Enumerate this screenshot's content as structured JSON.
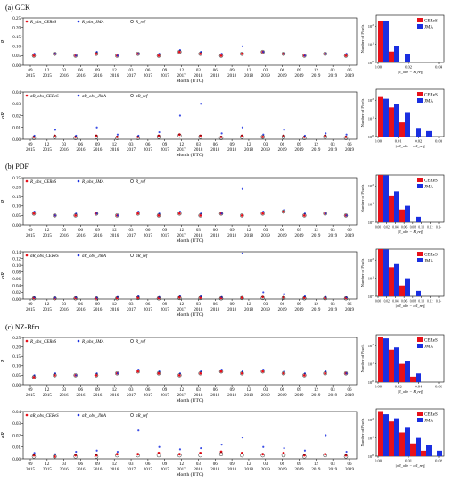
{
  "colors": {
    "ceres": "#e8101a",
    "jma": "#1a2fe0",
    "ref": "#000000"
  },
  "x_ticks": {
    "months": [
      "09",
      "12",
      "03",
      "06",
      "09",
      "12",
      "03",
      "06",
      "09",
      "12",
      "03",
      "06",
      "09",
      "12",
      "03",
      "06",
      "09",
      "12",
      "03",
      "06"
    ],
    "years": [
      "2015",
      "2015",
      "2016",
      "2016",
      "2016",
      "2016",
      "2017",
      "2017",
      "2017",
      "2017",
      "2018",
      "2018",
      "2018",
      "2018",
      "2019",
      "2019",
      "2019",
      "2019",
      "2019",
      "2019"
    ],
    "xlabel": "Month (UTC)"
  },
  "legend_top": [
    "R_obs_CEReS",
    "R_obs_JMA",
    "R_ref"
  ],
  "legend_bottom": [
    "σR_obs_CEReS",
    "σR_obs_JMA",
    "σR_ref"
  ],
  "hist_legend": [
    "CEReS",
    "JMA"
  ],
  "hist_ylabel": "Number of Pixels",
  "chart_data": [
    {
      "section": "(a) GCK",
      "type": "scatter",
      "ylabel": "R",
      "yticks": [
        "0.00",
        "0.05",
        "0.10",
        "0.15",
        "0.20",
        "0.25"
      ],
      "ylim": [
        0,
        0.25
      ],
      "series": [
        {
          "name": "R_obs_CEReS",
          "values": [
            0.05,
            0.06,
            0.05,
            0.06,
            0.05,
            0.06,
            0.05,
            0.07,
            0.06,
            0.05,
            0.06,
            0.07,
            0.06,
            0.05,
            0.06,
            0.05
          ]
        },
        {
          "name": "R_obs_JMA",
          "values": [
            0.06,
            0.06,
            0.05,
            0.07,
            0.05,
            0.06,
            0.06,
            0.08,
            0.07,
            0.06,
            0.1,
            0.07,
            0.06,
            0.05,
            0.06,
            0.06
          ]
        },
        {
          "name": "R_ref",
          "values": [
            0.05,
            0.06,
            0.05,
            0.06,
            0.05,
            0.06,
            0.05,
            0.07,
            0.06,
            0.05,
            0.06,
            0.07,
            0.06,
            0.05,
            0.06,
            0.05
          ]
        }
      ],
      "hist": {
        "xlabel": "|R_obs − R_ref|",
        "xticks": [
          "0.00",
          "0.02",
          "0.04"
        ],
        "yticks": [
          "10^0",
          "10^1",
          "10^2"
        ],
        "ceres": [
          190,
          4,
          1,
          0,
          0,
          0
        ],
        "jma": [
          190,
          8,
          3,
          1,
          1,
          0
        ]
      }
    },
    {
      "section": "(a) GCK",
      "type": "scatter",
      "ylabel": "σR",
      "yticks": [
        "0.00",
        "0.01",
        "0.02",
        "0.03",
        "0.04"
      ],
      "ylim": [
        0,
        0.04
      ],
      "series": [
        {
          "name": "σR_obs_CEReS",
          "values": [
            0.002,
            0.003,
            0.002,
            0.003,
            0.002,
            0.002,
            0.003,
            0.004,
            0.003,
            0.002,
            0.003,
            0.002,
            0.003,
            0.002,
            0.003,
            0.002
          ]
        },
        {
          "name": "σR_obs_JMA",
          "values": [
            0.003,
            0.008,
            0.003,
            0.01,
            0.004,
            0.003,
            0.006,
            0.02,
            0.03,
            0.005,
            0.01,
            0.004,
            0.008,
            0.003,
            0.005,
            0.004
          ]
        },
        {
          "name": "σR_ref",
          "values": [
            0.001,
            0.002,
            0.001,
            0.002,
            0.001,
            0.001,
            0.002,
            0.003,
            0.002,
            0.001,
            0.002,
            0.002,
            0.002,
            0.001,
            0.002,
            0.001
          ]
        }
      ],
      "hist": {
        "xlabel": "|σR_obs − σR_ref|",
        "xticks": [
          "0.00",
          "0.01",
          "0.02",
          "0.03"
        ],
        "yticks": [
          "10^0",
          "10^1",
          "10^2"
        ],
        "ceres": [
          150,
          40,
          6,
          1,
          0,
          0
        ],
        "jma": [
          120,
          60,
          20,
          3,
          2,
          1
        ]
      }
    },
    {
      "section": "(b) PDF",
      "type": "scatter",
      "ylabel": "R",
      "yticks": [
        "0.00",
        "0.05",
        "0.10",
        "0.15",
        "0.20",
        "0.25"
      ],
      "ylim": [
        0,
        0.25
      ],
      "series": [
        {
          "name": "R_obs_CEReS",
          "values": [
            0.06,
            0.05,
            0.05,
            0.06,
            0.05,
            0.06,
            0.05,
            0.06,
            0.05,
            0.06,
            0.05,
            0.06,
            0.07,
            0.05,
            0.06,
            0.05
          ]
        },
        {
          "name": "R_obs_JMA",
          "values": [
            0.07,
            0.05,
            0.06,
            0.06,
            0.05,
            0.07,
            0.06,
            0.07,
            0.06,
            0.06,
            0.19,
            0.07,
            0.08,
            0.06,
            0.06,
            0.05
          ]
        },
        {
          "name": "R_ref",
          "values": [
            0.06,
            0.05,
            0.05,
            0.06,
            0.05,
            0.06,
            0.05,
            0.06,
            0.05,
            0.06,
            0.05,
            0.06,
            0.07,
            0.05,
            0.06,
            0.05
          ]
        }
      ],
      "hist": {
        "xlabel": "|R_obs − R_ref|",
        "xticks": [
          "0.00",
          "0.02",
          "0.04",
          "0.06",
          "0.08",
          "0.10",
          "0.12",
          "0.14"
        ],
        "yticks": [
          "10^0",
          "10^1",
          "10^2"
        ],
        "ceres": [
          400,
          30,
          5,
          1,
          0,
          0
        ],
        "jma": [
          380,
          50,
          8,
          2,
          1,
          1
        ]
      }
    },
    {
      "section": "(b) PDF",
      "type": "scatter",
      "ylabel": "σR",
      "yticks": [
        "0.00",
        "0.02",
        "0.04",
        "0.06",
        "0.08",
        "0.10",
        "0.12",
        "0.14"
      ],
      "ylim": [
        0,
        0.14
      ],
      "series": [
        {
          "name": "σR_obs_CEReS",
          "values": [
            0.003,
            0.002,
            0.003,
            0.002,
            0.003,
            0.004,
            0.003,
            0.005,
            0.004,
            0.003,
            0.004,
            0.006,
            0.005,
            0.004,
            0.003,
            0.003
          ]
        },
        {
          "name": "σR_obs_JMA",
          "values": [
            0.005,
            0.004,
            0.005,
            0.004,
            0.006,
            0.008,
            0.006,
            0.01,
            0.008,
            0.006,
            0.135,
            0.02,
            0.015,
            0.008,
            0.006,
            0.005
          ]
        },
        {
          "name": "σR_ref",
          "values": [
            0.002,
            0.002,
            0.002,
            0.002,
            0.002,
            0.003,
            0.002,
            0.003,
            0.003,
            0.002,
            0.003,
            0.003,
            0.003,
            0.002,
            0.002,
            0.002
          ]
        }
      ],
      "hist": {
        "xlabel": "|σR_obs − σR_ref|",
        "xticks": [
          "0.00",
          "0.02",
          "0.04",
          "0.06",
          "0.08",
          "0.10",
          "0.12",
          "0.14"
        ],
        "yticks": [
          "10^0",
          "10^1",
          "10^2"
        ],
        "ceres": [
          420,
          40,
          4,
          1,
          0,
          0
        ],
        "jma": [
          380,
          60,
          10,
          2,
          1,
          1
        ]
      }
    },
    {
      "section": "(c) NZ-Bfm",
      "type": "scatter",
      "ylabel": "R",
      "yticks": [
        "0.00",
        "0.05",
        "0.10",
        "0.15",
        "0.20",
        "0.25"
      ],
      "ylim": [
        0,
        0.25
      ],
      "series": [
        {
          "name": "R_obs_CEReS",
          "values": [
            0.04,
            0.05,
            0.05,
            0.05,
            0.06,
            0.07,
            0.06,
            0.05,
            0.06,
            0.07,
            0.06,
            0.07,
            0.06,
            0.05,
            0.06,
            0.06
          ]
        },
        {
          "name": "R_obs_JMA",
          "values": [
            0.05,
            0.06,
            0.05,
            0.06,
            0.06,
            0.08,
            0.07,
            0.06,
            0.07,
            0.08,
            0.07,
            0.08,
            0.07,
            0.06,
            0.07,
            0.06
          ]
        },
        {
          "name": "R_ref",
          "values": [
            0.04,
            0.05,
            0.05,
            0.05,
            0.06,
            0.07,
            0.06,
            0.05,
            0.06,
            0.07,
            0.06,
            0.07,
            0.06,
            0.05,
            0.06,
            0.06
          ]
        }
      ],
      "hist": {
        "xlabel": "|R_obs − R_ref|",
        "xticks": [
          "0.00",
          "0.02",
          "0.04",
          "0.06"
        ],
        "yticks": [
          "10^0",
          "10^1",
          "10^2"
        ],
        "ceres": [
          300,
          60,
          10,
          2,
          1,
          1
        ],
        "jma": [
          250,
          80,
          15,
          3,
          1,
          1
        ]
      }
    },
    {
      "section": "(c) NZ-Bfm",
      "type": "scatter",
      "ylabel": "σR",
      "yticks": [
        "0.00",
        "0.01",
        "0.02",
        "0.03",
        "0.04"
      ],
      "ylim": [
        0,
        0.04
      ],
      "series": [
        {
          "name": "σR_obs_CEReS",
          "values": [
            0.003,
            0.002,
            0.003,
            0.003,
            0.004,
            0.004,
            0.005,
            0.004,
            0.005,
            0.006,
            0.005,
            0.004,
            0.005,
            0.003,
            0.004,
            0.003
          ]
        },
        {
          "name": "σR_obs_JMA",
          "values": [
            0.005,
            0.004,
            0.006,
            0.007,
            0.006,
            0.024,
            0.01,
            0.008,
            0.009,
            0.012,
            0.018,
            0.01,
            0.009,
            0.007,
            0.02,
            0.006
          ]
        },
        {
          "name": "σR_ref",
          "values": [
            0.002,
            0.002,
            0.002,
            0.002,
            0.003,
            0.003,
            0.003,
            0.003,
            0.003,
            0.004,
            0.003,
            0.003,
            0.003,
            0.002,
            0.003,
            0.002
          ]
        }
      ],
      "hist": {
        "xlabel": "|σR_obs − σR_ref|",
        "xticks": [
          "0.00",
          "0.01",
          "0.02"
        ],
        "yticks": [
          "10^0",
          "10^1",
          "10^2"
        ],
        "ceres": [
          300,
          80,
          20,
          5,
          2,
          1
        ],
        "jma": [
          200,
          120,
          40,
          10,
          4,
          2
        ]
      }
    }
  ]
}
